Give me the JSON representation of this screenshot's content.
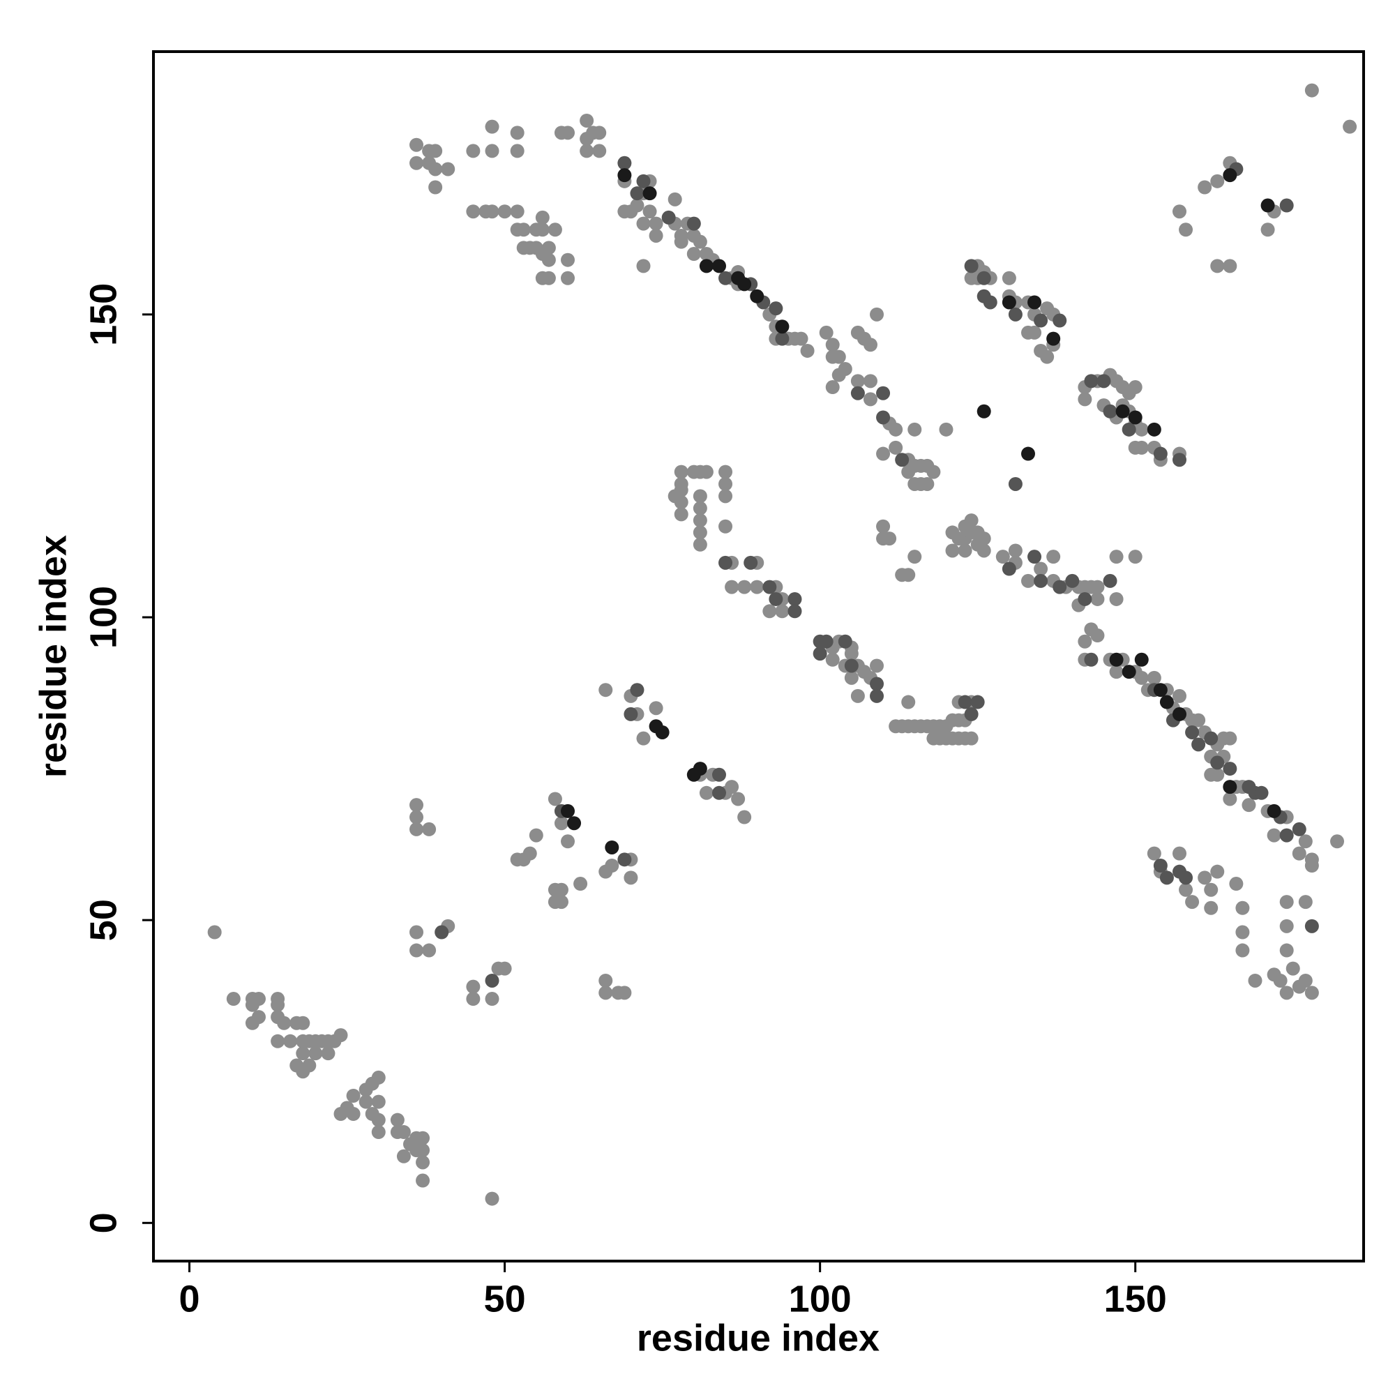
{
  "chart_data": {
    "type": "scatter",
    "x_label": "residue index",
    "y_label": "residue index",
    "xlim": [
      -5.7,
      186.2
    ],
    "ylim": [
      -6.3,
      193.4
    ],
    "xticks": [
      0,
      50,
      100,
      150
    ],
    "yticks": [
      0,
      50,
      100,
      150
    ],
    "series": [
      {
        "color": "#8c8c8c",
        "x": [
          4,
          7,
          10,
          11,
          10,
          14,
          14,
          11,
          10,
          14,
          15,
          17,
          18,
          14,
          16,
          18,
          19,
          20,
          21,
          22,
          23,
          24,
          20,
          22,
          18,
          17,
          18,
          19,
          26,
          25,
          28,
          29,
          30,
          28,
          30,
          24,
          26,
          29,
          30,
          30,
          33,
          33,
          34,
          35,
          36,
          37,
          37,
          37,
          36,
          34,
          37,
          48,
          36,
          38,
          39,
          36,
          38,
          39,
          41,
          39,
          45,
          48,
          48,
          52,
          52,
          59,
          60,
          63,
          63,
          64,
          65,
          65,
          63,
          45,
          47,
          48,
          50,
          52,
          52,
          53,
          55,
          56,
          56,
          58,
          53,
          54,
          55,
          56,
          57,
          57,
          60,
          56,
          57,
          60,
          69,
          72,
          73,
          77,
          69,
          70,
          71,
          72,
          73,
          74,
          74,
          77,
          78,
          79,
          80,
          81,
          82,
          80,
          78,
          83,
          86,
          87,
          87,
          92,
          93,
          95,
          96,
          97,
          98,
          93,
          72,
          101,
          102,
          102,
          103,
          103,
          104,
          102,
          106,
          107,
          108,
          109,
          106,
          108,
          108,
          111,
          112,
          115,
          112,
          110,
          114,
          115,
          116,
          117,
          118,
          114,
          115,
          116,
          117,
          125,
          126,
          124,
          125,
          127,
          130,
          130,
          131,
          133,
          134,
          136,
          137,
          133,
          134,
          137,
          135,
          136,
          142,
          144,
          146,
          147,
          148,
          149,
          150,
          142,
          145,
          148,
          149,
          147,
          150,
          151,
          150,
          151,
          153,
          157,
          154,
          120,
          161,
          165,
          163,
          158,
          157,
          163,
          165,
          172,
          171,
          178,
          184,
          78,
          78,
          78,
          78,
          78,
          77,
          80,
          81,
          82,
          81,
          81,
          81,
          81,
          81,
          85,
          85,
          85,
          85,
          86,
          90,
          93,
          90,
          88,
          86,
          94,
          94,
          92,
          110,
          110,
          111,
          115,
          113,
          114,
          121,
          122,
          123,
          123,
          124,
          124,
          125,
          125,
          126,
          121,
          123,
          126,
          129,
          131,
          131,
          135,
          137,
          133,
          137,
          139,
          141,
          142,
          143,
          144,
          147,
          150,
          141,
          144,
          147,
          102,
          103,
          105,
          102,
          104,
          105,
          106,
          105,
          107,
          109,
          106,
          108,
          114,
          113,
          112,
          114,
          115,
          116,
          117,
          118,
          119,
          120,
          121,
          122,
          122,
          124,
          123,
          119,
          120,
          121,
          122,
          123,
          124,
          118,
          143,
          144,
          142,
          142,
          146,
          148,
          147,
          150,
          151,
          153,
          152,
          155,
          157,
          156,
          158,
          159,
          160,
          161,
          163,
          164,
          165,
          162,
          164,
          162,
          163,
          166,
          165,
          167,
          168,
          171,
          174,
          172,
          177,
          176,
          182,
          178,
          178,
          153,
          154,
          157,
          158,
          159,
          161,
          162,
          162,
          163,
          166,
          167,
          167,
          167,
          174,
          177,
          174,
          174,
          169,
          172,
          173,
          174,
          176,
          177,
          178,
          175,
          36,
          36,
          36,
          38,
          36,
          36,
          38,
          41,
          45,
          45,
          48,
          49,
          50,
          52,
          53,
          54,
          55,
          58,
          59,
          60,
          58,
          59,
          58,
          59,
          62,
          66,
          66,
          68,
          69,
          66,
          67,
          70,
          70,
          66,
          70,
          71,
          72,
          74,
          81,
          82,
          83,
          85,
          86,
          87,
          88
        ],
        "values": [
          48,
          37,
          37,
          37,
          36,
          37,
          36,
          34,
          33,
          34,
          33,
          33,
          33,
          30,
          30,
          30,
          30,
          30,
          30,
          30,
          30,
          31,
          28,
          28,
          28,
          26,
          25,
          26,
          21,
          19,
          22,
          23,
          24,
          20,
          20,
          18,
          18,
          18,
          17,
          15,
          17,
          15,
          15,
          13,
          14,
          14,
          12,
          10,
          12,
          11,
          7,
          4,
          178,
          177,
          177,
          175,
          175,
          174,
          174,
          171,
          177,
          177,
          181,
          180,
          177,
          180,
          180,
          182,
          179,
          180,
          180,
          177,
          177,
          167,
          167,
          167,
          167,
          167,
          164,
          164,
          164,
          164,
          166,
          164,
          161,
          161,
          161,
          160,
          161,
          159,
          159,
          156,
          156,
          156,
          172,
          170,
          172,
          169,
          167,
          167,
          168,
          165,
          167,
          165,
          163,
          165,
          163,
          165,
          163,
          162,
          160,
          160,
          162,
          159,
          156,
          155,
          157,
          150,
          148,
          146,
          146,
          146,
          144,
          146,
          158,
          147,
          145,
          143,
          143,
          140,
          141,
          138,
          147,
          146,
          145,
          150,
          139,
          136,
          139,
          132,
          131,
          131,
          128,
          127,
          126,
          125,
          125,
          125,
          124,
          124,
          122,
          122,
          122,
          158,
          157,
          156,
          156,
          156,
          156,
          153,
          152,
          152,
          150,
          151,
          150,
          147,
          147,
          145,
          144,
          143,
          138,
          139,
          140,
          139,
          138,
          137,
          138,
          136,
          135,
          135,
          134,
          133,
          132,
          131,
          128,
          128,
          128,
          127,
          126,
          131,
          171,
          175,
          172,
          164,
          167,
          158,
          158,
          167,
          164,
          187,
          181,
          124,
          122,
          121,
          119,
          117,
          120,
          124,
          124,
          124,
          120,
          118,
          116,
          114,
          112,
          124,
          122,
          120,
          115,
          109,
          109,
          105,
          105,
          105,
          105,
          103,
          101,
          101,
          113,
          115,
          113,
          110,
          107,
          107,
          114,
          113,
          113,
          115,
          116,
          114,
          114,
          112,
          113,
          111,
          111,
          111,
          110,
          111,
          109,
          108,
          110,
          106,
          106,
          105,
          105,
          105,
          105,
          105,
          110,
          110,
          102,
          103,
          103,
          95,
          96,
          95,
          93,
          92,
          94,
          92,
          90,
          91,
          92,
          87,
          90,
          86,
          82,
          82,
          82,
          82,
          82,
          82,
          82,
          82,
          82,
          83,
          83,
          86,
          86,
          83,
          80,
          80,
          80,
          80,
          80,
          80,
          80,
          98,
          97,
          96,
          93,
          93,
          93,
          91,
          91,
          90,
          90,
          88,
          88,
          87,
          85,
          84,
          83,
          83,
          81,
          79,
          80,
          80,
          77,
          77,
          74,
          74,
          72,
          70,
          72,
          69,
          68,
          67,
          64,
          63,
          61,
          63,
          60,
          59,
          61,
          58,
          61,
          55,
          53,
          57,
          55,
          52,
          58,
          56,
          52,
          48,
          45,
          53,
          53,
          49,
          45,
          40,
          41,
          40,
          38,
          39,
          40,
          38,
          42,
          69,
          67,
          65,
          65,
          48,
          45,
          45,
          49,
          39,
          37,
          37,
          42,
          42,
          60,
          60,
          61,
          64,
          70,
          66,
          63,
          55,
          55,
          53,
          53,
          56,
          38,
          40,
          38,
          38,
          58,
          59,
          60,
          57,
          88,
          87,
          84,
          80,
          85,
          74,
          71,
          74,
          71,
          72,
          70,
          67
        ]
      },
      {
        "color": "#555555",
        "x": [
          69,
          72,
          71,
          76,
          80,
          85,
          89,
          91,
          93,
          94,
          106,
          110,
          110,
          113,
          124,
          126,
          127,
          131,
          135,
          138,
          143,
          145,
          146,
          149,
          154,
          157,
          166,
          174,
          85,
          89,
          92,
          93,
          96,
          96,
          100,
          101,
          104,
          100,
          105,
          109,
          109,
          123,
          124,
          125,
          130,
          134,
          135,
          138,
          140,
          142,
          146,
          153,
          156,
          159,
          160,
          162,
          163,
          165,
          168,
          169,
          170,
          173,
          174,
          176,
          178,
          154,
          155,
          157,
          158,
          70,
          71,
          84,
          84,
          59,
          69,
          40,
          48,
          131,
          126,
          143
        ],
        "values": [
          175,
          172,
          170,
          166,
          165,
          156,
          155,
          152,
          151,
          146,
          137,
          137,
          133,
          126,
          158,
          156,
          152,
          150,
          149,
          149,
          139,
          139,
          134,
          131,
          127,
          126,
          174,
          168,
          109,
          109,
          105,
          103,
          103,
          101,
          96,
          96,
          96,
          94,
          92,
          89,
          87,
          86,
          84,
          86,
          108,
          110,
          106,
          105,
          106,
          103,
          106,
          88,
          83,
          81,
          79,
          80,
          76,
          75,
          72,
          71,
          71,
          67,
          64,
          65,
          49,
          59,
          57,
          58,
          57,
          84,
          88,
          74,
          71,
          68,
          60,
          48,
          40,
          122,
          153,
          93
        ]
      },
      {
        "color": "#1a1a1a",
        "x": [
          69,
          73,
          82,
          84,
          87,
          88,
          90,
          94,
          74,
          75,
          81,
          80,
          60,
          61,
          67,
          165,
          171,
          130,
          134,
          137,
          148,
          150,
          153,
          151,
          154,
          155,
          157,
          126,
          133,
          147,
          149,
          165,
          172
        ],
        "values": [
          173,
          170,
          158,
          158,
          156,
          155,
          153,
          148,
          82,
          81,
          75,
          74,
          68,
          66,
          62,
          173,
          168,
          152,
          152,
          146,
          134,
          133,
          131,
          93,
          88,
          86,
          84,
          134,
          127,
          93,
          91,
          72,
          68
        ]
      }
    ]
  }
}
